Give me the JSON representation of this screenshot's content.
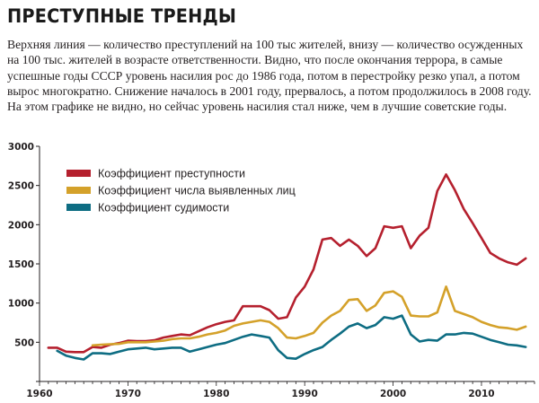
{
  "title": "ПРЕСТУПНЫЕ ТРЕНДЫ",
  "description": "Верхняя линия — количество преступлений на 100 тыс жителей, внизу — количество осужденных на 100 тыс. жителей в возрасте ответственности. Видно, что после окончания террора, в самые успешные годы СССР уровень насилия рос до 1986 года, потом в перестройку резко упал, а потом вырос многократно. Снижение началось в 2001 году, прервалось, а потом продолжилось в 2008 году. На этом графике не видно, но сейчас уровень насилия стал ниже, чем в лучшие советские годы.",
  "chart_data": {
    "type": "line",
    "xlim": [
      1960,
      2016
    ],
    "ylim": [
      0,
      3000
    ],
    "xticks": [
      1960,
      1970,
      1980,
      1990,
      2000,
      2010
    ],
    "yticks": [
      0,
      500,
      1000,
      1500,
      2000,
      2500,
      3000
    ],
    "grid": false,
    "legend_position": "top-left",
    "series": [
      {
        "name": "Коэффициент преступности",
        "color": "#b5202e",
        "points": [
          [
            1961,
            430
          ],
          [
            1962,
            430
          ],
          [
            1963,
            380
          ],
          [
            1964,
            375
          ],
          [
            1965,
            375
          ],
          [
            1966,
            440
          ],
          [
            1967,
            430
          ],
          [
            1968,
            470
          ],
          [
            1969,
            490
          ],
          [
            1970,
            520
          ],
          [
            1971,
            515
          ],
          [
            1972,
            515
          ],
          [
            1973,
            525
          ],
          [
            1974,
            560
          ],
          [
            1975,
            580
          ],
          [
            1976,
            600
          ],
          [
            1977,
            590
          ],
          [
            1978,
            640
          ],
          [
            1979,
            690
          ],
          [
            1980,
            730
          ],
          [
            1981,
            760
          ],
          [
            1982,
            780
          ],
          [
            1983,
            960
          ],
          [
            1984,
            960
          ],
          [
            1985,
            960
          ],
          [
            1986,
            910
          ],
          [
            1987,
            800
          ],
          [
            1988,
            820
          ],
          [
            1989,
            1070
          ],
          [
            1990,
            1210
          ],
          [
            1991,
            1430
          ],
          [
            1992,
            1810
          ],
          [
            1993,
            1830
          ],
          [
            1994,
            1730
          ],
          [
            1995,
            1810
          ],
          [
            1996,
            1730
          ],
          [
            1997,
            1600
          ],
          [
            1998,
            1700
          ],
          [
            1999,
            1980
          ],
          [
            2000,
            1960
          ],
          [
            2001,
            1980
          ],
          [
            2002,
            1700
          ],
          [
            2003,
            1860
          ],
          [
            2004,
            1960
          ],
          [
            2005,
            2430
          ],
          [
            2006,
            2640
          ],
          [
            2007,
            2440
          ],
          [
            2008,
            2200
          ],
          [
            2009,
            2020
          ],
          [
            2010,
            1830
          ],
          [
            2011,
            1640
          ],
          [
            2012,
            1570
          ],
          [
            2013,
            1520
          ],
          [
            2014,
            1490
          ],
          [
            2015,
            1570
          ]
        ]
      },
      {
        "name": "Коэффициент числа выявленных лиц",
        "color": "#d4a12a",
        "points": [
          [
            1966,
            460
          ],
          [
            1967,
            470
          ],
          [
            1968,
            475
          ],
          [
            1969,
            480
          ],
          [
            1970,
            500
          ],
          [
            1971,
            500
          ],
          [
            1972,
            500
          ],
          [
            1973,
            510
          ],
          [
            1974,
            520
          ],
          [
            1975,
            540
          ],
          [
            1976,
            550
          ],
          [
            1977,
            550
          ],
          [
            1978,
            570
          ],
          [
            1979,
            600
          ],
          [
            1980,
            620
          ],
          [
            1981,
            650
          ],
          [
            1982,
            710
          ],
          [
            1983,
            740
          ],
          [
            1984,
            760
          ],
          [
            1985,
            780
          ],
          [
            1986,
            760
          ],
          [
            1987,
            680
          ],
          [
            1988,
            560
          ],
          [
            1989,
            550
          ],
          [
            1990,
            580
          ],
          [
            1991,
            620
          ],
          [
            1992,
            750
          ],
          [
            1993,
            840
          ],
          [
            1994,
            900
          ],
          [
            1995,
            1040
          ],
          [
            1996,
            1050
          ],
          [
            1997,
            900
          ],
          [
            1998,
            970
          ],
          [
            1999,
            1130
          ],
          [
            2000,
            1150
          ],
          [
            2001,
            1080
          ],
          [
            2002,
            840
          ],
          [
            2003,
            830
          ],
          [
            2004,
            830
          ],
          [
            2005,
            880
          ],
          [
            2006,
            1210
          ],
          [
            2007,
            900
          ],
          [
            2008,
            860
          ],
          [
            2009,
            820
          ],
          [
            2010,
            760
          ],
          [
            2011,
            720
          ],
          [
            2012,
            690
          ],
          [
            2013,
            680
          ],
          [
            2014,
            660
          ],
          [
            2015,
            700
          ]
        ]
      },
      {
        "name": "Коэффициент судимости",
        "color": "#0e6d83",
        "points": [
          [
            1962,
            390
          ],
          [
            1963,
            330
          ],
          [
            1964,
            300
          ],
          [
            1965,
            280
          ],
          [
            1966,
            360
          ],
          [
            1967,
            360
          ],
          [
            1968,
            350
          ],
          [
            1969,
            380
          ],
          [
            1970,
            410
          ],
          [
            1971,
            420
          ],
          [
            1972,
            430
          ],
          [
            1973,
            410
          ],
          [
            1974,
            420
          ],
          [
            1975,
            430
          ],
          [
            1976,
            430
          ],
          [
            1977,
            380
          ],
          [
            1978,
            410
          ],
          [
            1979,
            440
          ],
          [
            1980,
            470
          ],
          [
            1981,
            490
          ],
          [
            1982,
            530
          ],
          [
            1983,
            570
          ],
          [
            1984,
            600
          ],
          [
            1985,
            580
          ],
          [
            1986,
            560
          ],
          [
            1987,
            400
          ],
          [
            1988,
            300
          ],
          [
            1989,
            290
          ],
          [
            1990,
            350
          ],
          [
            1991,
            400
          ],
          [
            1992,
            440
          ],
          [
            1993,
            530
          ],
          [
            1994,
            610
          ],
          [
            1995,
            700
          ],
          [
            1996,
            740
          ],
          [
            1997,
            680
          ],
          [
            1998,
            720
          ],
          [
            1999,
            820
          ],
          [
            2000,
            800
          ],
          [
            2001,
            840
          ],
          [
            2002,
            600
          ],
          [
            2003,
            510
          ],
          [
            2004,
            530
          ],
          [
            2005,
            520
          ],
          [
            2006,
            600
          ],
          [
            2007,
            600
          ],
          [
            2008,
            620
          ],
          [
            2009,
            610
          ],
          [
            2010,
            570
          ],
          [
            2011,
            530
          ],
          [
            2012,
            500
          ],
          [
            2013,
            470
          ],
          [
            2014,
            460
          ],
          [
            2015,
            440
          ]
        ]
      }
    ]
  }
}
